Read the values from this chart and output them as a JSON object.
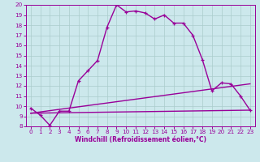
{
  "xlabel": "Windchill (Refroidissement éolien,°C)",
  "bg_color": "#cce8ec",
  "line_color": "#990099",
  "grid_color": "#aacccc",
  "xlim": [
    -0.5,
    23.5
  ],
  "ylim": [
    8,
    20
  ],
  "xticks": [
    0,
    1,
    2,
    3,
    4,
    5,
    6,
    7,
    8,
    9,
    10,
    11,
    12,
    13,
    14,
    15,
    16,
    17,
    18,
    19,
    20,
    21,
    22,
    23
  ],
  "yticks": [
    8,
    9,
    10,
    11,
    12,
    13,
    14,
    15,
    16,
    17,
    18,
    19,
    20
  ],
  "hours": [
    0,
    1,
    2,
    3,
    4,
    5,
    6,
    7,
    8,
    9,
    10,
    11,
    12,
    13,
    14,
    15,
    16,
    17,
    18,
    19,
    20,
    21,
    22,
    23
  ],
  "temp_line": [
    9.8,
    9.1,
    8.1,
    9.5,
    9.5,
    12.5,
    13.5,
    14.5,
    17.8,
    20.0,
    19.3,
    19.4,
    19.2,
    18.6,
    19.0,
    18.2,
    18.2,
    17.0,
    14.6,
    11.5,
    12.3,
    12.2,
    11.0,
    9.6
  ],
  "wc_line1_x": [
    0,
    23
  ],
  "wc_line1_y": [
    9.3,
    12.2
  ],
  "wc_line2_x": [
    0,
    23
  ],
  "wc_line2_y": [
    9.3,
    9.6
  ],
  "xlabel_fontsize": 5.5,
  "tick_fontsize": 5.2,
  "linewidth": 1.0,
  "marker_size": 3.5,
  "figwidth": 3.2,
  "figheight": 2.0,
  "dpi": 100
}
